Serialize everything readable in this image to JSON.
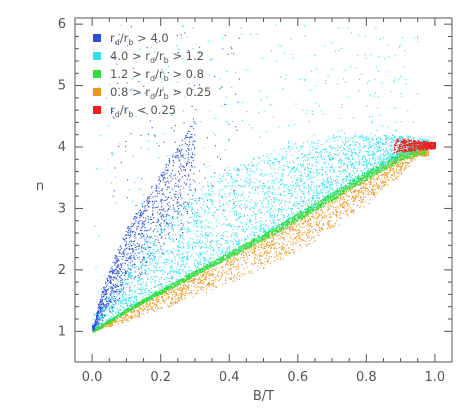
{
  "chart_data": {
    "type": "scatter",
    "title": "",
    "xlabel": "B/T",
    "ylabel": "n",
    "xlim": [
      -0.05,
      1.05
    ],
    "ylim": [
      0.5,
      6.1
    ],
    "x_ticks": [
      "0.0",
      "0.2",
      "0.4",
      "0.6",
      "0.8",
      "1.0"
    ],
    "x_tick_values": [
      0.0,
      0.2,
      0.4,
      0.6,
      0.8,
      1.0
    ],
    "y_ticks": [
      "1",
      "2",
      "3",
      "4",
      "5",
      "6"
    ],
    "y_tick_values": [
      1,
      2,
      3,
      4,
      5,
      6
    ],
    "grid": false,
    "legend_position": "top-left",
    "series": [
      {
        "name": "r_d/r_b > 4.0",
        "legend": {
          "parts": [
            [
              "r",
              ""
            ],
            [
              "d",
              "sub"
            ],
            [
              "/r",
              ""
            ],
            [
              "b",
              "sub"
            ],
            [
              " > 4.0",
              ""
            ]
          ]
        },
        "color": "#2b4fe0",
        "x": [
          0.005,
          0.01,
          0.015,
          0.02,
          0.03,
          0.04,
          0.05,
          0.06,
          0.07,
          0.08,
          0.09,
          0.1,
          0.12,
          0.14,
          0.16,
          0.18,
          0.2,
          0.22,
          0.25,
          0.28,
          0.32,
          0.38
        ],
        "y": [
          1.1,
          1.25,
          1.4,
          1.5,
          1.7,
          1.85,
          2.0,
          2.15,
          2.3,
          2.4,
          2.55,
          2.7,
          2.9,
          3.05,
          3.25,
          3.45,
          3.6,
          3.8,
          4.0,
          4.3,
          4.7,
          5.2
        ]
      },
      {
        "name": "4.0 > r_d/r_b > 1.2",
        "legend": {
          "parts": [
            [
              "4.0 > r",
              ""
            ],
            [
              "d",
              "sub"
            ],
            [
              "/r",
              ""
            ],
            [
              "b",
              "sub"
            ],
            [
              " > 1.2",
              ""
            ]
          ]
        },
        "color": "#2ee0f0",
        "x": [
          0.02,
          0.05,
          0.1,
          0.15,
          0.2,
          0.25,
          0.3,
          0.35,
          0.4,
          0.45,
          0.5,
          0.55,
          0.6,
          0.65,
          0.7,
          0.75,
          0.8,
          0.85,
          0.9
        ],
        "y": [
          1.3,
          1.6,
          2.0,
          2.3,
          2.6,
          2.8,
          3.0,
          3.2,
          3.3,
          3.45,
          3.55,
          3.65,
          3.75,
          3.8,
          3.9,
          3.95,
          4.0,
          4.05,
          4.1
        ]
      },
      {
        "name": "1.2 > r_d/r_b > 0.8",
        "legend": {
          "parts": [
            [
              "1.2 > r",
              ""
            ],
            [
              "d",
              "sub"
            ],
            [
              "/r",
              ""
            ],
            [
              "b",
              "sub"
            ],
            [
              " > 0.8",
              ""
            ]
          ]
        },
        "color": "#2ee03a",
        "x": [
          0.0,
          0.05,
          0.1,
          0.15,
          0.2,
          0.25,
          0.3,
          0.35,
          0.4,
          0.45,
          0.5,
          0.55,
          0.6,
          0.65,
          0.7,
          0.75,
          0.8,
          0.85,
          0.9,
          0.95
        ],
        "y": [
          1.0,
          1.17,
          1.34,
          1.5,
          1.65,
          1.8,
          1.95,
          2.1,
          2.25,
          2.4,
          2.55,
          2.7,
          2.87,
          3.03,
          3.2,
          3.37,
          3.53,
          3.7,
          3.85,
          3.95
        ]
      },
      {
        "name": "0.8 > r_d/r_b > 0.25",
        "legend": {
          "parts": [
            [
              "0.8 > r",
              ""
            ],
            [
              "d",
              "sub"
            ],
            [
              "/r",
              ""
            ],
            [
              "b",
              "sub"
            ],
            [
              " > 0.25",
              ""
            ]
          ]
        },
        "color": "#f0961e",
        "x": [
          0.0,
          0.05,
          0.1,
          0.15,
          0.2,
          0.25,
          0.3,
          0.35,
          0.4,
          0.45,
          0.5,
          0.55,
          0.6,
          0.65,
          0.7,
          0.75,
          0.8,
          0.85,
          0.9,
          0.95
        ],
        "y": [
          1.0,
          1.08,
          1.16,
          1.25,
          1.35,
          1.45,
          1.55,
          1.65,
          1.75,
          1.9,
          2.02,
          2.15,
          2.3,
          2.47,
          2.65,
          2.85,
          3.05,
          3.3,
          3.55,
          3.85
        ]
      },
      {
        "name": "r_d/r_b < 0.25",
        "legend": {
          "parts": [
            [
              "r",
              ""
            ],
            [
              "d",
              "sub"
            ],
            [
              "/r",
              ""
            ],
            [
              "b",
              "sub"
            ],
            [
              " < 0.25",
              ""
            ]
          ]
        },
        "color": "#f01e1e",
        "x": [
          0.88,
          0.9,
          0.92,
          0.94,
          0.95,
          0.96,
          0.97,
          0.98,
          0.99,
          1.0
        ],
        "y": [
          3.85,
          3.95,
          4.0,
          4.05,
          4.1,
          4.0,
          4.05,
          4.1,
          4.05,
          4.0
        ]
      }
    ]
  }
}
